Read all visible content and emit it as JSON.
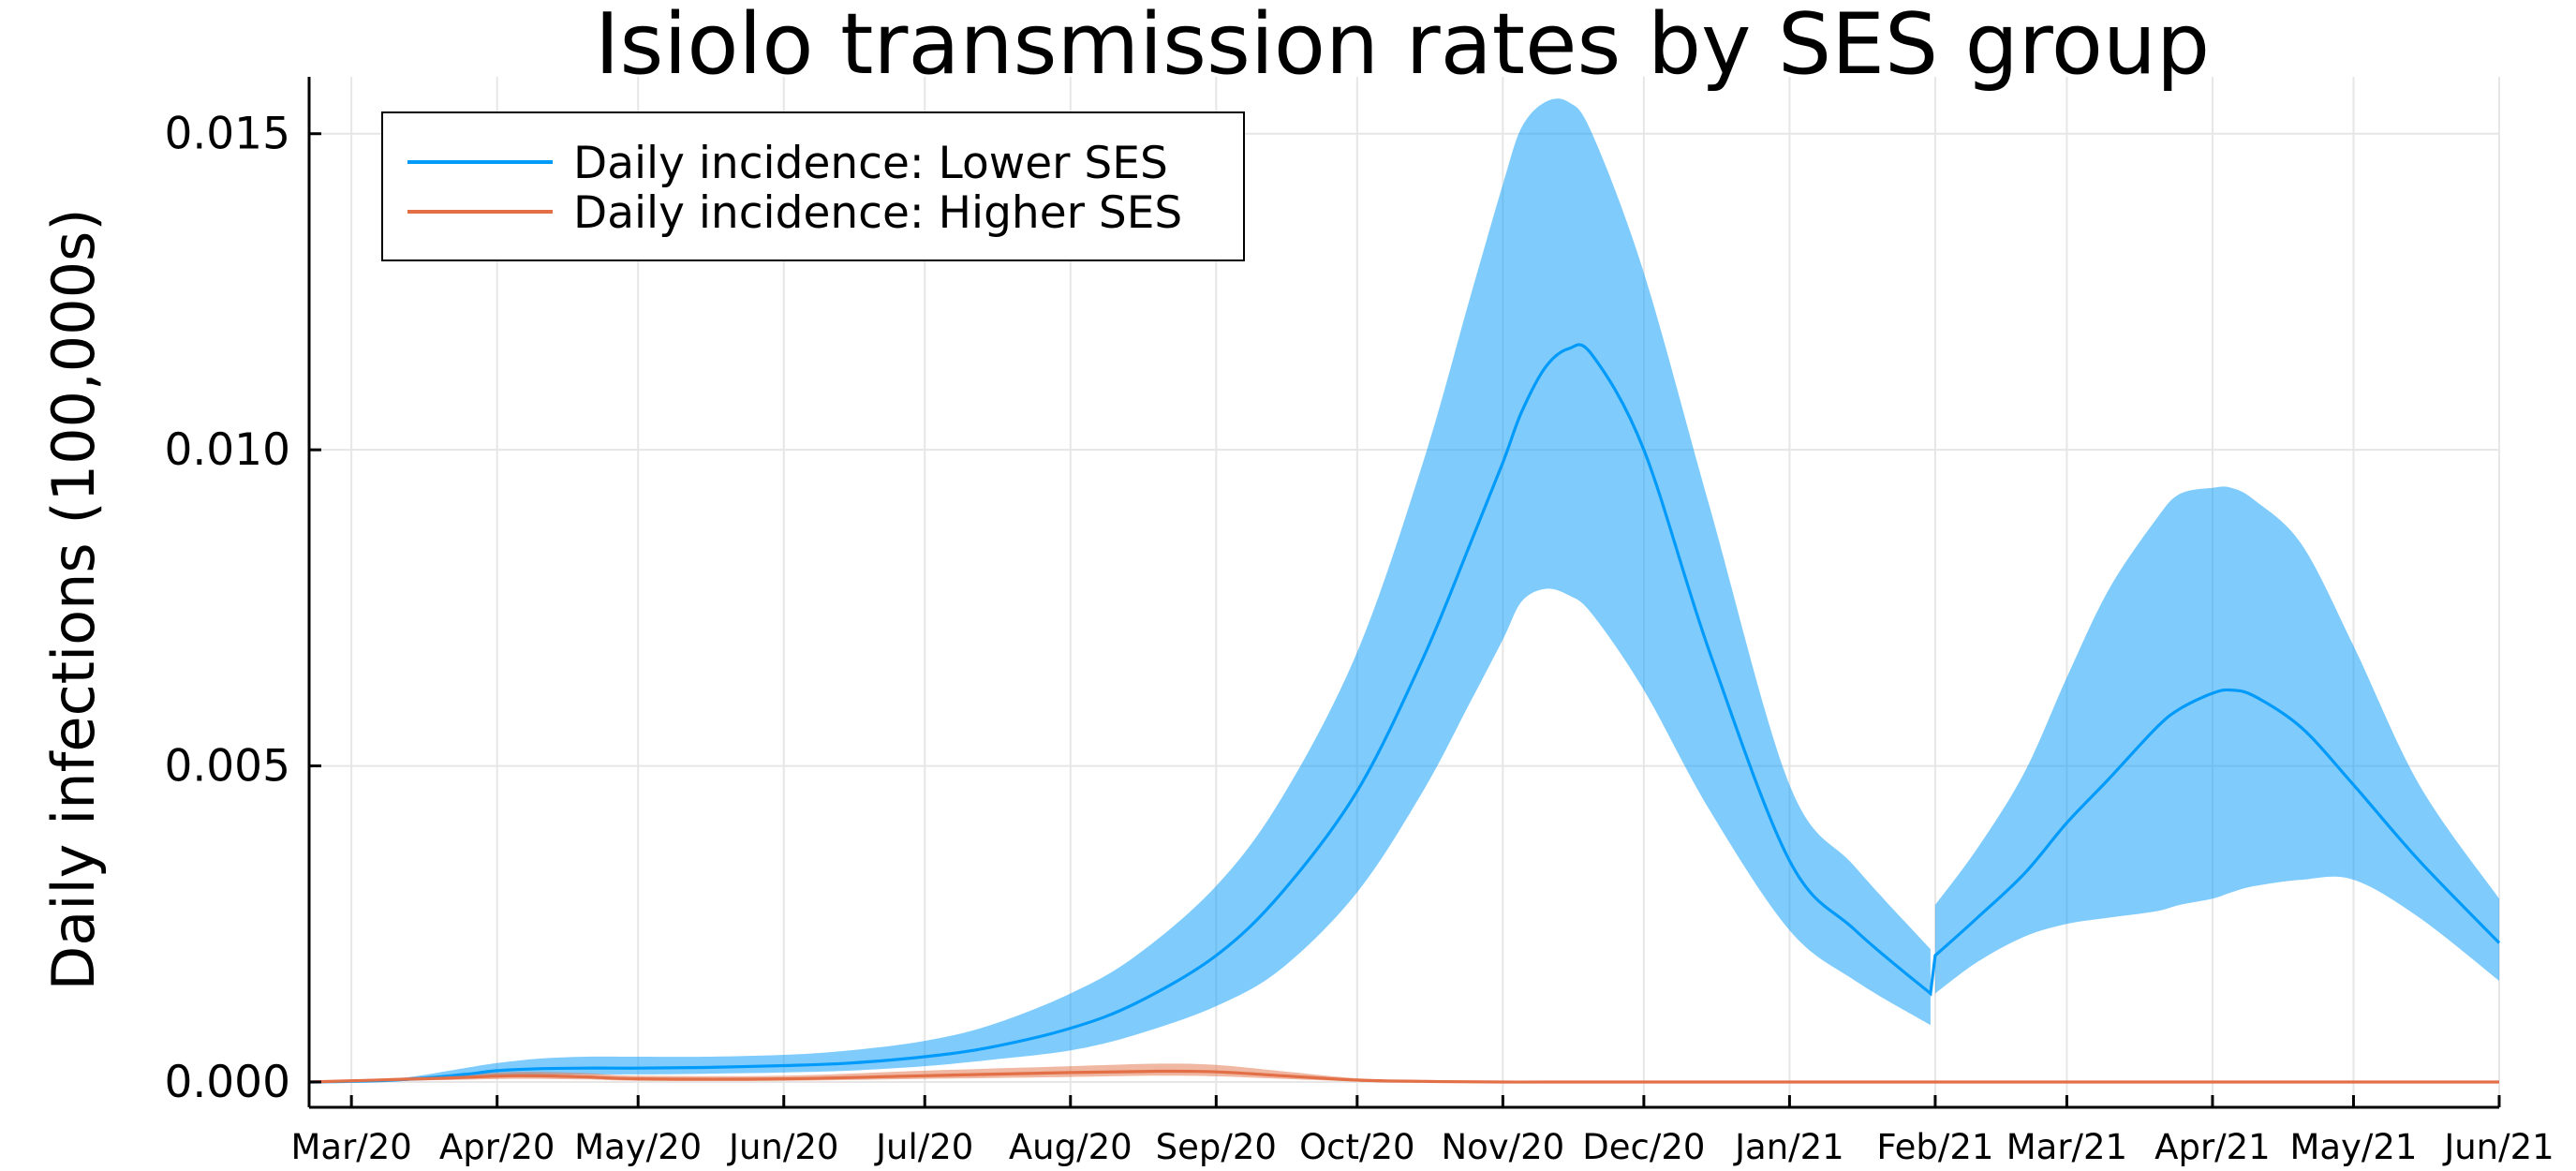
{
  "chart_data": {
    "type": "line",
    "title": "Isiolo transmission rates by SES group",
    "xlabel": "",
    "ylabel": "Daily infections (100,000s)",
    "x_tick_labels": [
      "Mar/20",
      "Apr/20",
      "May/20",
      "Jun/20",
      "Jul/20",
      "Aug/20",
      "Sep/20",
      "Oct/20",
      "Nov/20",
      "Dec/20",
      "Jan/21",
      "Feb/21",
      "Mar/21",
      "Apr/21",
      "May/21",
      "Jun/21"
    ],
    "y_tick_labels": [
      "0.000",
      "0.005",
      "0.010",
      "0.015"
    ],
    "y_ticks": [
      0,
      0.005,
      0.01,
      0.015
    ],
    "xlim": [
      "2020-02-21",
      "2021-06-01"
    ],
    "ylim": [
      -0.0004,
      0.0159
    ],
    "grid": true,
    "legend_position": "top-left",
    "series": [
      {
        "name": "Daily incidence: Lower SES",
        "color": "#009AFA",
        "band_color": "#009AFA",
        "band_opacity": 0.5,
        "x": [
          "2020-02-21",
          "2020-03-10",
          "2020-03-25",
          "2020-04-01",
          "2020-04-10",
          "2020-04-20",
          "2020-05-01",
          "2020-05-15",
          "2020-06-01",
          "2020-06-15",
          "2020-07-01",
          "2020-07-15",
          "2020-08-01",
          "2020-08-15",
          "2020-09-01",
          "2020-09-15",
          "2020-10-01",
          "2020-10-15",
          "2020-10-25",
          "2020-11-01",
          "2020-11-05",
          "2020-11-10",
          "2020-11-15",
          "2020-11-20",
          "2020-12-01",
          "2020-12-15",
          "2021-01-01",
          "2021-01-15",
          "2021-01-31",
          "2021-02-01",
          "2021-02-10",
          "2021-02-20",
          "2021-03-01",
          "2021-03-10",
          "2021-03-20",
          "2021-03-25",
          "2021-04-01",
          "2021-04-05",
          "2021-04-10",
          "2021-04-20",
          "2021-05-01",
          "2021-05-15",
          "2021-06-01"
        ],
        "values": [
          0.0,
          3e-05,
          0.00012,
          0.00018,
          0.00021,
          0.00022,
          0.00022,
          0.00023,
          0.00026,
          0.0003,
          0.0004,
          0.00055,
          0.00085,
          0.00125,
          0.002,
          0.003,
          0.0046,
          0.0067,
          0.0085,
          0.0098,
          0.0106,
          0.0113,
          0.0116,
          0.0115,
          0.01,
          0.0068,
          0.0035,
          0.0024,
          0.0014,
          0.002,
          0.0026,
          0.0033,
          0.0041,
          0.0048,
          0.0056,
          0.0059,
          0.00615,
          0.0062,
          0.0061,
          0.0056,
          0.0047,
          0.0035,
          0.0022
        ],
        "lower": [
          0.0,
          1e-05,
          6e-05,
          0.0001,
          0.00012,
          0.00012,
          0.00012,
          0.00013,
          0.00015,
          0.00018,
          0.00025,
          0.00035,
          0.0005,
          0.00075,
          0.0012,
          0.0018,
          0.003,
          0.0046,
          0.006,
          0.007,
          0.0076,
          0.0078,
          0.0077,
          0.0074,
          0.0062,
          0.0043,
          0.0024,
          0.0016,
          0.0009,
          0.0014,
          0.0019,
          0.0023,
          0.0025,
          0.0026,
          0.0027,
          0.0028,
          0.0029,
          0.003,
          0.0031,
          0.0032,
          0.0032,
          0.0026,
          0.0016
        ],
        "upper": [
          0.0,
          5e-05,
          0.00022,
          0.0003,
          0.00037,
          0.0004,
          0.0004,
          0.0004,
          0.00043,
          0.0005,
          0.00065,
          0.0009,
          0.0014,
          0.002,
          0.0031,
          0.0045,
          0.0068,
          0.0098,
          0.0124,
          0.0142,
          0.0151,
          0.0155,
          0.0155,
          0.015,
          0.0128,
          0.0091,
          0.0047,
          0.0034,
          0.0021,
          0.0028,
          0.0037,
          0.0049,
          0.0064,
          0.0078,
          0.0089,
          0.0093,
          0.0094,
          0.0094,
          0.0092,
          0.0085,
          0.0069,
          0.0047,
          0.0029
        ]
      },
      {
        "name": "Daily incidence: Higher SES",
        "color": "#E26F46",
        "band_color": "#E26F46",
        "band_opacity": 0.5,
        "x": [
          "2020-02-21",
          "2020-03-20",
          "2020-04-05",
          "2020-04-20",
          "2020-05-01",
          "2020-06-01",
          "2020-07-01",
          "2020-08-01",
          "2020-08-20",
          "2020-09-01",
          "2020-09-15",
          "2020-10-01",
          "2020-10-15",
          "2020-11-01",
          "2020-12-01",
          "2021-06-01"
        ],
        "values": [
          0.0,
          6e-05,
          0.0001,
          8e-05,
          5e-05,
          5e-05,
          0.0001,
          0.00015,
          0.00017,
          0.00016,
          0.0001,
          3e-05,
          1e-05,
          0.0,
          0.0,
          0.0
        ],
        "lower": [
          0.0,
          3e-05,
          5e-05,
          4e-05,
          2e-05,
          2e-05,
          5e-05,
          8e-05,
          0.0001,
          9e-05,
          5e-05,
          1e-05,
          0.0,
          0.0,
          0.0,
          0.0
        ],
        "upper": [
          0.0,
          0.0001,
          0.00016,
          0.00014,
          0.0001,
          0.0001,
          0.00018,
          0.00025,
          0.00029,
          0.00027,
          0.00017,
          6e-05,
          2e-05,
          0.0,
          0.0,
          0.0
        ]
      }
    ]
  }
}
